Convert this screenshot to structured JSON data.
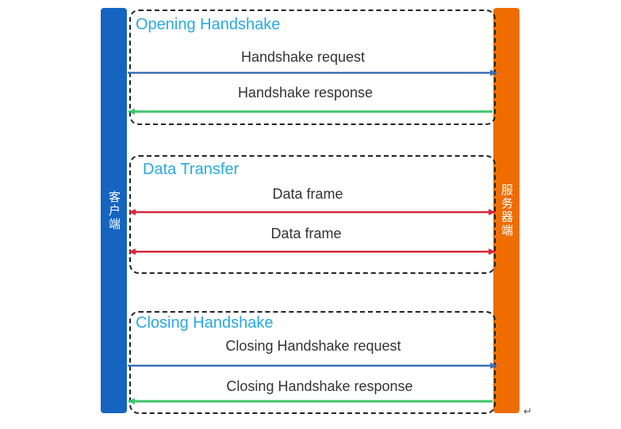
{
  "colors": {
    "client_bar": "#1565c0",
    "server_bar": "#ef6c00",
    "section_title": "#29a9e0",
    "request_arrow": "#3b6fb6",
    "response_arrow": "#3cc56a",
    "data_arrow": "#d6263b"
  },
  "client": {
    "label": "客户端"
  },
  "server": {
    "label": "服务器端"
  },
  "sections": [
    {
      "title": "Opening Handshake",
      "messages": [
        {
          "text": "Handshake request",
          "direction": "client-to-server"
        },
        {
          "text": "Handshake response",
          "direction": "server-to-client"
        }
      ]
    },
    {
      "title": "Data Transfer",
      "messages": [
        {
          "text": "Data frame",
          "direction": "bidirectional"
        },
        {
          "text": "Data frame",
          "direction": "bidirectional"
        }
      ]
    },
    {
      "title": "Closing Handshake",
      "messages": [
        {
          "text": "Closing Handshake request",
          "direction": "client-to-server"
        },
        {
          "text": "Closing Handshake response",
          "direction": "server-to-client"
        }
      ]
    }
  ],
  "footer_mark": "↵"
}
